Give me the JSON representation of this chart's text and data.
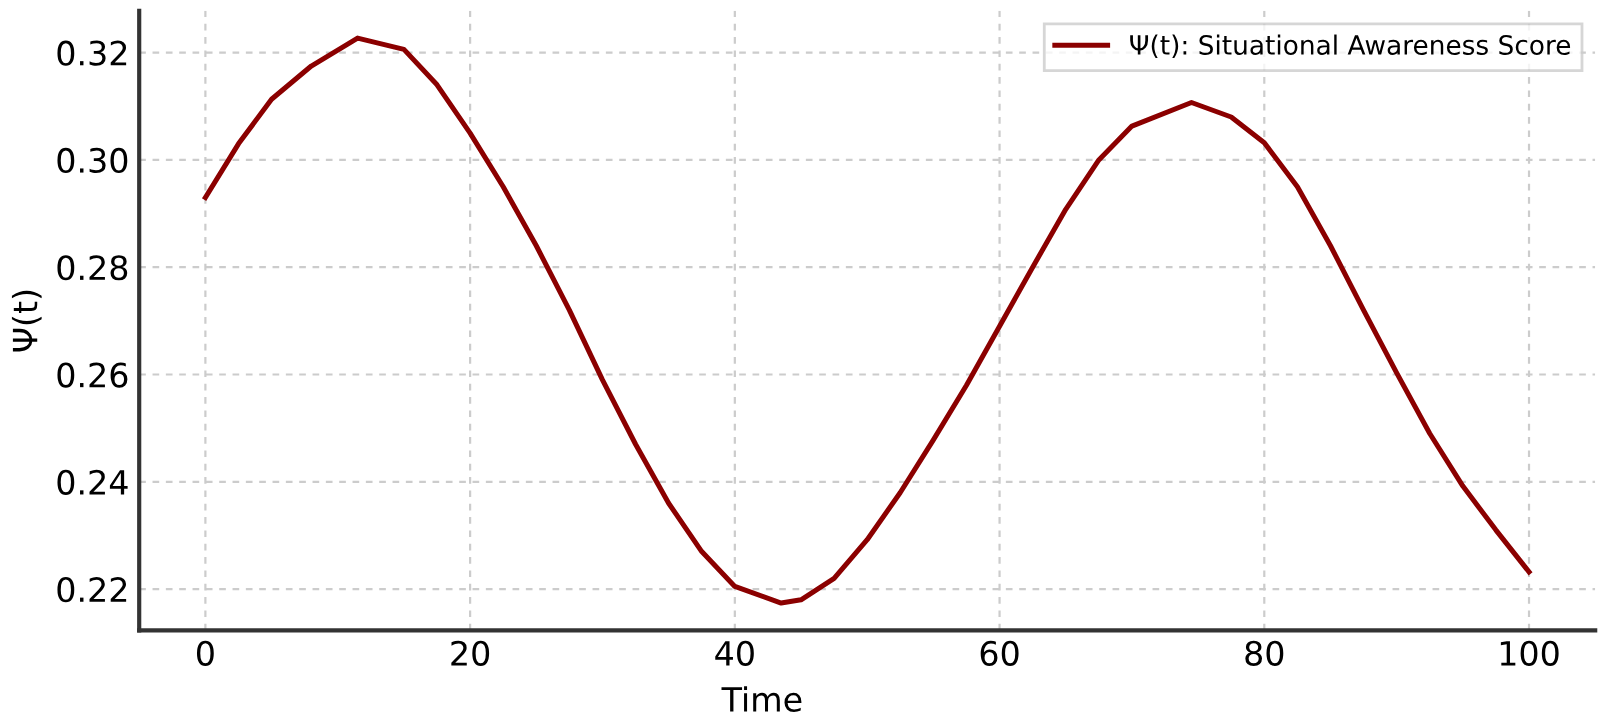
{
  "chart_data": {
    "type": "line",
    "xlabel": "Time",
    "ylabel": "Ψ(t)",
    "x": [
      0,
      2.5,
      5,
      8,
      11.5,
      15,
      17.5,
      20,
      22.5,
      25,
      27.5,
      30,
      32.5,
      35,
      37.5,
      40,
      43.5,
      45,
      47.5,
      50,
      52.5,
      55,
      57.5,
      60,
      62.5,
      65,
      67.5,
      70,
      74.5,
      77.5,
      80,
      82.5,
      85,
      87.5,
      90,
      92.5,
      95,
      97.5,
      100
    ],
    "series": [
      {
        "name": "Ψ(t): Situational Awareness Score",
        "color": "#8b0000",
        "values": [
          0.293,
          0.303,
          0.3113,
          0.3175,
          0.3227,
          0.3206,
          0.314,
          0.305,
          0.295,
          0.284,
          0.272,
          0.259,
          0.247,
          0.236,
          0.227,
          0.2205,
          0.2174,
          0.218,
          0.222,
          0.2292,
          0.238,
          0.2478,
          0.258,
          0.269,
          0.28,
          0.2908,
          0.3,
          0.3063,
          0.3107,
          0.308,
          0.3032,
          0.295,
          0.284,
          0.272,
          0.2603,
          0.249,
          0.2392,
          0.231,
          0.2232
        ]
      }
    ],
    "xlim": [
      -5,
      105
    ],
    "xticks": [
      0,
      20,
      40,
      60,
      80,
      100
    ],
    "ylim": [
      0.2123,
      0.3278
    ],
    "yticks": [
      {
        "value": 0.22,
        "label": "0.22"
      },
      {
        "value": 0.24,
        "label": "0.24"
      },
      {
        "value": 0.26,
        "label": "0.26"
      },
      {
        "value": 0.28,
        "label": "0.28"
      },
      {
        "value": 0.3,
        "label": "0.30"
      },
      {
        "value": 0.32,
        "label": "0.32"
      }
    ],
    "grid": true,
    "legend": "top right",
    "marker": "none",
    "line_style": "solid"
  }
}
